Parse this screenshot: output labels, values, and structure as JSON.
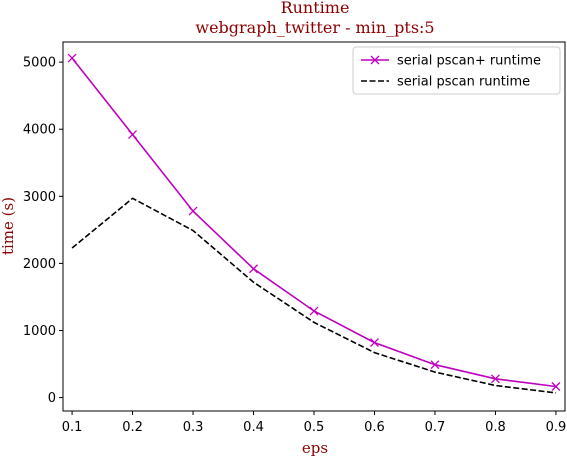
{
  "chart_data": {
    "type": "line",
    "title": "Runtime",
    "subtitle": "webgraph_twitter - min_pts:5",
    "xlabel": "eps",
    "ylabel": "time (s)",
    "x": [
      0.1,
      0.2,
      0.3,
      0.4,
      0.5,
      0.6,
      0.7,
      0.8,
      0.9
    ],
    "xlim": [
      0.085,
      0.915
    ],
    "ylim": [
      -200,
      5300
    ],
    "xticks": [
      "0.1",
      "0.2",
      "0.3",
      "0.4",
      "0.5",
      "0.6",
      "0.7",
      "0.8",
      "0.9"
    ],
    "yticks": [
      "0",
      "1000",
      "2000",
      "3000",
      "4000",
      "5000"
    ],
    "grid": false,
    "legend_position": "upper right",
    "series": [
      {
        "name": "serial pscan+ runtime",
        "color": "#c000c0",
        "marker": "x",
        "linestyle": "solid",
        "values": [
          5060,
          3920,
          2780,
          1920,
          1290,
          820,
          490,
          280,
          165
        ]
      },
      {
        "name": "serial pscan runtime",
        "color": "#000000",
        "marker": "none",
        "linestyle": "dashed",
        "values": [
          2230,
          2970,
          2490,
          1720,
          1120,
          670,
          380,
          180,
          70
        ]
      }
    ]
  }
}
